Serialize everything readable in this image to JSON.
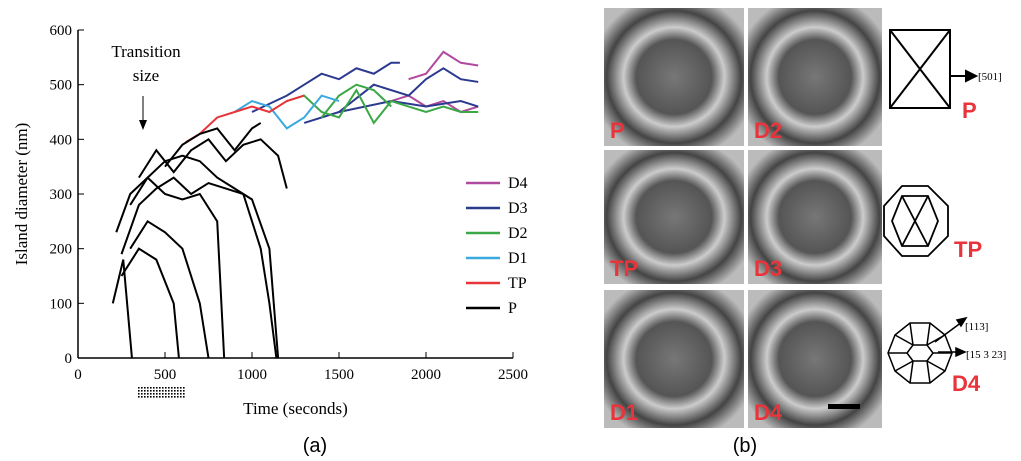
{
  "chart_data": {
    "type": "line",
    "ylabel": "Island diameter (nm)",
    "xlabel": "Time (seconds)",
    "annotation": [
      "Transition",
      "size"
    ],
    "xlim": [
      0,
      2500
    ],
    "ylim": [
      0,
      600
    ],
    "xticks": [
      0,
      500,
      1000,
      1500,
      2000,
      2500
    ],
    "yticks": [
      0,
      100,
      200,
      300,
      400,
      500,
      600
    ],
    "series": [
      {
        "name": "D4",
        "color": "#b04a9e",
        "lines": [
          {
            "x": [
              1900,
              2000,
              2100,
              2200,
              2300
            ],
            "values": [
              510,
              520,
              560,
              540,
              535
            ]
          },
          {
            "x": [
              1800,
              1900,
              2000,
              2100,
              2200,
              2300
            ],
            "values": [
              470,
              480,
              460,
              470,
              450,
              460
            ]
          }
        ]
      },
      {
        "name": "D3",
        "color": "#2b3a8f",
        "lines": [
          {
            "x": [
              1000,
              1200,
              1300,
              1400,
              1500,
              1600,
              1700,
              1800,
              1850
            ],
            "values": [
              450,
              480,
              500,
              520,
              510,
              530,
              520,
              540,
              540
            ]
          },
          {
            "x": [
              1500,
              1700,
              1900,
              2000,
              2100,
              2200,
              2300
            ],
            "values": [
              450,
              500,
              480,
              510,
              530,
              510,
              505
            ]
          },
          {
            "x": [
              1300,
              1500,
              1800,
              2000,
              2200,
              2300
            ],
            "values": [
              430,
              450,
              470,
              460,
              470,
              460
            ]
          }
        ]
      },
      {
        "name": "D2",
        "color": "#3aa846",
        "lines": [
          {
            "x": [
              1200,
              1300,
              1400,
              1500,
              1600,
              1700,
              1800,
              1900,
              2000,
              2100,
              2200,
              2300
            ],
            "values": [
              470,
              480,
              450,
              440,
              490,
              430,
              470,
              460,
              450,
              460,
              450,
              450
            ]
          },
          {
            "x": [
              1400,
              1500,
              1600,
              1700,
              1800
            ],
            "values": [
              440,
              480,
              500,
              490,
              460
            ]
          }
        ]
      },
      {
        "name": "D1",
        "color": "#3aa9e0",
        "lines": [
          {
            "x": [
              900,
              1000,
              1100,
              1200,
              1300,
              1400,
              1500
            ],
            "values": [
              450,
              470,
              460,
              420,
              440,
              480,
              470
            ]
          }
        ]
      },
      {
        "name": "TP",
        "color": "#e8343a",
        "lines": [
          {
            "x": [
              620,
              700,
              800,
              900,
              1000,
              1100,
              1200,
              1300
            ],
            "values": [
              395,
              410,
              440,
              450,
              460,
              450,
              470,
              480
            ]
          }
        ]
      },
      {
        "name": "P",
        "color": "#000000",
        "lines": [
          {
            "x": [
              200,
              260,
              310
            ],
            "values": [
              100,
              180,
              0
            ]
          },
          {
            "x": [
              250,
              350,
              450,
              550,
              580
            ],
            "values": [
              150,
              200,
              180,
              100,
              0
            ]
          },
          {
            "x": [
              300,
              400,
              500,
              600,
              700,
              750
            ],
            "values": [
              200,
              250,
              230,
              200,
              100,
              0
            ]
          },
          {
            "x": [
              220,
              300,
              400,
              500,
              600,
              700,
              800,
              840
            ],
            "values": [
              230,
              300,
              330,
              300,
              290,
              300,
              250,
              0
            ]
          },
          {
            "x": [
              250,
              350,
              450,
              550,
              650,
              750,
              850,
              950,
              1000,
              1050,
              1100,
              1140
            ],
            "values": [
              190,
              280,
              310,
              330,
              300,
              320,
              310,
              300,
              250,
              200,
              100,
              0
            ]
          },
          {
            "x": [
              300,
              400,
              500,
              600,
              700,
              800,
              900,
              1000,
              1100,
              1150
            ],
            "values": [
              280,
              330,
              360,
              370,
              360,
              330,
              310,
              290,
              200,
              0
            ]
          },
          {
            "x": [
              350,
              450,
              550,
              650,
              750,
              850,
              950,
              1050,
              1150,
              1200
            ],
            "values": [
              330,
              380,
              340,
              380,
              400,
              360,
              390,
              400,
              370,
              310
            ]
          },
          {
            "x": [
              500,
              600,
              700,
              800,
              900,
              1000,
              1050
            ],
            "values": [
              350,
              390,
              410,
              420,
              380,
              420,
              430
            ]
          }
        ]
      }
    ]
  },
  "caption_a": "(a)",
  "panel_b": {
    "caption": "(b)",
    "images": [
      "P",
      "D2",
      "TP",
      "D3",
      "D1",
      "D4"
    ],
    "diagrams": [
      {
        "label": "P",
        "directions": [
          "[501]"
        ]
      },
      {
        "label": "TP"
      },
      {
        "label": "D4",
        "directions": [
          "[113]",
          "[15 3 23]"
        ]
      }
    ]
  }
}
